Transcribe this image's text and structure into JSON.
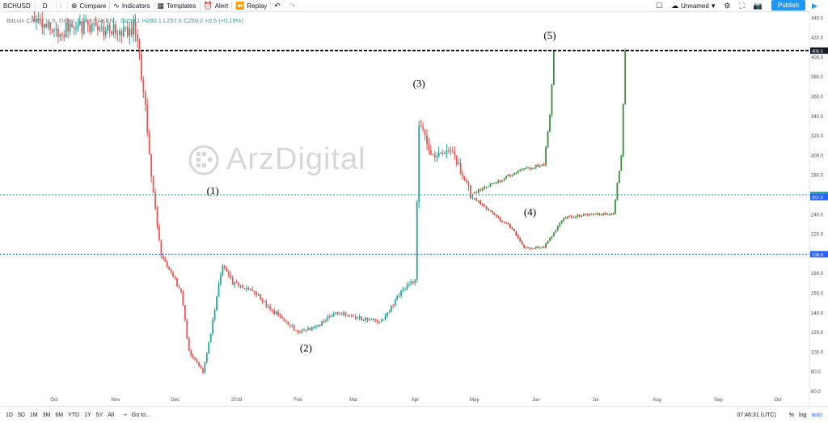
{
  "toolbar": {
    "symbol": "BCHUSD",
    "interval": "D",
    "compare": "Compare",
    "indicators": "Indicators",
    "templates": "Templates",
    "alert": "Alert",
    "replay": "Replay",
    "layout_name": "Unnamed",
    "publish": "Publish"
  },
  "legend": {
    "title": "Bitcoin Cash / U.S. Dollar, 1D, KRAKEN",
    "ohlc": "O259.1  H260.1  L257.6  C259.2  +0.5 (+0.19%)"
  },
  "watermark": {
    "text": "ArzDigital"
  },
  "bottom": {
    "ranges": [
      "1D",
      "5D",
      "1M",
      "3M",
      "6M",
      "YTD",
      "1Y",
      "5Y",
      "All"
    ],
    "goto": "Go to...",
    "time": "07:46:31 (UTC)",
    "percent": "%",
    "log": "log",
    "auto": "auto"
  },
  "colors": {
    "up": "#26a69a",
    "down": "#ef5350",
    "projection_up": "#388e3c",
    "projection_down": "#e53935",
    "black_line": "#000000",
    "blue_line": "#2962ff",
    "teal_line": "#26a69a"
  },
  "chart_data": {
    "type": "candlestick",
    "symbol": "BCHUSD",
    "x_tick_labels": [
      "Oct",
      "Nov",
      "Dec",
      "2019",
      "Feb",
      "Mar",
      "Apr",
      "May",
      "Jun",
      "Jul",
      "Aug",
      "Sep",
      "Oct"
    ],
    "y_tick_labels": [
      "60.0",
      "80.0",
      "100.0",
      "120.0",
      "140.0",
      "160.0",
      "180.0",
      "200.0",
      "220.0",
      "240.0",
      "260.0",
      "280.0",
      "300.0",
      "320.0",
      "340.0",
      "360.0",
      "380.0",
      "400.0",
      "420.0",
      "440.0"
    ],
    "ylim": [
      46,
      446
    ],
    "wave_labels": [
      "(1)",
      "(2)",
      "(3)",
      "(4)",
      "(5)"
    ],
    "horizontal_levels": [
      {
        "value": 406.0,
        "label": "406.0",
        "style": "dashed-black"
      },
      {
        "value": 259.2,
        "label": "259.2",
        "style": "dotted-teal"
      },
      {
        "value": 257.0,
        "label": "257.0",
        "style": "dotted-blue-tag"
      },
      {
        "value": 198.8,
        "label": "198.8",
        "style": "dotted-blue"
      }
    ],
    "price_path": [
      [
        "2018-09-20",
        440
      ],
      [
        "2018-10-01",
        425
      ],
      [
        "2018-10-15",
        430
      ],
      [
        "2018-11-01",
        425
      ],
      [
        "2018-11-10",
        430
      ],
      [
        "2018-11-12",
        420
      ],
      [
        "2018-11-14",
        380
      ],
      [
        "2018-11-16",
        350
      ],
      [
        "2018-11-20",
        260
      ],
      [
        "2018-11-24",
        200
      ],
      [
        "2018-11-28",
        185
      ],
      [
        "2018-12-04",
        160
      ],
      [
        "2018-12-08",
        100
      ],
      [
        "2018-12-12",
        90
      ],
      [
        "2018-12-15",
        78
      ],
      [
        "2018-12-20",
        130
      ],
      [
        "2018-12-25",
        190
      ],
      [
        "2018-12-30",
        170
      ],
      [
        "2019-01-10",
        160
      ],
      [
        "2019-01-20",
        140
      ],
      [
        "2019-02-01",
        120
      ],
      [
        "2019-02-10",
        125
      ],
      [
        "2019-02-20",
        140
      ],
      [
        "2019-03-01",
        135
      ],
      [
        "2019-03-15",
        130
      ],
      [
        "2019-03-25",
        160
      ],
      [
        "2019-04-01",
        172
      ],
      [
        "2019-04-03",
        330
      ],
      [
        "2019-04-10",
        300
      ],
      [
        "2019-04-20",
        305
      ],
      [
        "2019-04-25",
        280
      ],
      [
        "2019-04-30",
        255
      ]
    ],
    "projection_high": [
      [
        "2019-05-01",
        256
      ],
      [
        "2019-05-10",
        240
      ],
      [
        "2019-05-20",
        225
      ],
      [
        "2019-05-26",
        205
      ],
      [
        "2019-06-05",
        206
      ],
      [
        "2019-06-15",
        236
      ],
      [
        "2019-06-30",
        240
      ],
      [
        "2019-07-10",
        240
      ],
      [
        "2019-07-14",
        300
      ],
      [
        "2019-07-16",
        406
      ]
    ],
    "projection_low": [
      [
        "2019-05-01",
        262
      ],
      [
        "2019-05-12",
        272
      ],
      [
        "2019-05-25",
        285
      ],
      [
        "2019-06-05",
        290
      ],
      [
        "2019-06-08",
        340
      ],
      [
        "2019-06-10",
        406
      ]
    ]
  }
}
